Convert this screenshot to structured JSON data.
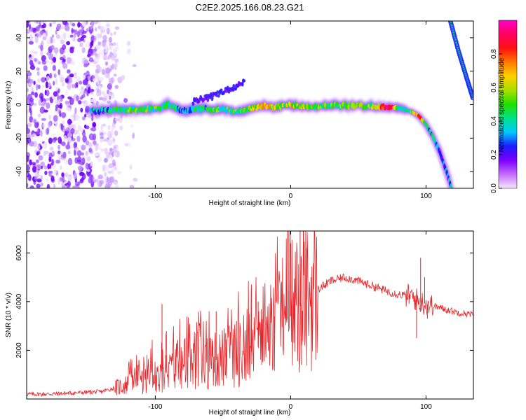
{
  "title": "C2E2.2025.166.08.23.G21",
  "chart_data": [
    {
      "type": "heatmap",
      "xlabel": "Height of straight line (km)",
      "ylabel": "Frequency (Hz)",
      "xlim": [
        -195,
        135
      ],
      "ylim": [
        -50,
        50
      ],
      "xticks": [
        -100,
        0,
        100
      ],
      "yticks": [
        -40,
        -20,
        0,
        20,
        40
      ],
      "grid": false,
      "colorbar": {
        "label": "Normalized spectral amplitude",
        "range": [
          0,
          1
        ],
        "ticks": [
          0.0,
          0.2,
          0.4,
          0.6,
          0.8
        ],
        "colors": [
          "#f4e8ff",
          "#c76cff",
          "#7a00ff",
          "#1b1bff",
          "#00c8ff",
          "#00e08a",
          "#22e000",
          "#a8e000",
          "#ffd000",
          "#ff7a00",
          "#ff1010",
          "#ff0060",
          "#ff00c8"
        ]
      },
      "noise_region": {
        "x": [
          -195,
          -128
        ],
        "y": [
          -50,
          50
        ]
      },
      "ridge": [
        {
          "x": -148,
          "f": -4,
          "a": 0.25
        },
        {
          "x": -135,
          "f": -3.5,
          "a": 0.35
        },
        {
          "x": -120,
          "f": -3,
          "a": 0.45
        },
        {
          "x": -110,
          "f": -3,
          "a": 0.5
        },
        {
          "x": -100,
          "f": -2.5,
          "a": 0.45
        },
        {
          "x": -90,
          "f": 0,
          "a": 0.4
        },
        {
          "x": -80,
          "f": -3.5,
          "a": 0.35
        },
        {
          "x": -65,
          "f": -2.5,
          "a": 0.4
        },
        {
          "x": -50,
          "f": -3,
          "a": 0.45
        },
        {
          "x": -40,
          "f": -4,
          "a": 0.45
        },
        {
          "x": -30,
          "f": -2.5,
          "a": 0.5
        },
        {
          "x": -20,
          "f": -1,
          "a": 0.7
        },
        {
          "x": -10,
          "f": -1.5,
          "a": 0.55
        },
        {
          "x": 0,
          "f": 0,
          "a": 0.6
        },
        {
          "x": 10,
          "f": -1,
          "a": 0.55
        },
        {
          "x": 20,
          "f": -1,
          "a": 0.5
        },
        {
          "x": 30,
          "f": -0.5,
          "a": 0.5
        },
        {
          "x": 40,
          "f": -0.5,
          "a": 0.5
        },
        {
          "x": 50,
          "f": -0.5,
          "a": 0.5
        },
        {
          "x": 60,
          "f": -1,
          "a": 0.55
        },
        {
          "x": 70,
          "f": -1.5,
          "a": 0.9
        },
        {
          "x": 75,
          "f": -1.5,
          "a": 0.85
        },
        {
          "x": 80,
          "f": -2,
          "a": 0.4
        },
        {
          "x": 85,
          "f": -3,
          "a": 0.4
        },
        {
          "x": 90,
          "f": -4.5,
          "a": 0.5
        },
        {
          "x": 95,
          "f": -7,
          "a": 0.8
        },
        {
          "x": 100,
          "f": -12,
          "a": 0.4
        },
        {
          "x": 105,
          "f": -19,
          "a": 0.35
        },
        {
          "x": 110,
          "f": -28,
          "a": 0.3
        },
        {
          "x": 115,
          "f": -40,
          "a": 0.3
        },
        {
          "x": 119,
          "f": -50,
          "a": 0.3
        }
      ],
      "plume": [
        {
          "x": -72,
          "f": 2
        },
        {
          "x": -62,
          "f": 4
        },
        {
          "x": -52,
          "f": 7
        },
        {
          "x": -42,
          "f": 10
        },
        {
          "x": -34,
          "f": 14
        }
      ],
      "alias_line": [
        {
          "x": 118,
          "f": 50
        },
        {
          "x": 124,
          "f": 32
        },
        {
          "x": 130,
          "f": 16
        },
        {
          "x": 135,
          "f": 3
        }
      ]
    },
    {
      "type": "line",
      "xlabel": "Height of straight line (km)",
      "ylabel": "SNR (10 * v/v)",
      "xlim": [
        -195,
        135
      ],
      "ylim": [
        0,
        6900
      ],
      "xticks": [
        -100,
        0,
        100
      ],
      "yticks": [
        2000,
        4000,
        6000
      ],
      "grid": false,
      "series": [
        {
          "color": "#e8262a",
          "points": [
            {
              "x": -195,
              "y": 200
            },
            {
              "x": -180,
              "y": 200
            },
            {
              "x": -160,
              "y": 250
            },
            {
              "x": -140,
              "y": 300
            },
            {
              "x": -130,
              "y": 450
            },
            {
              "x": -120,
              "y": 600
            },
            {
              "x": -110,
              "y": 800
            },
            {
              "x": -100,
              "y": 1000
            },
            {
              "x": -90,
              "y": 1100
            },
            {
              "x": -80,
              "y": 1300
            },
            {
              "x": -70,
              "y": 1400
            },
            {
              "x": -60,
              "y": 1500
            },
            {
              "x": -50,
              "y": 1700
            },
            {
              "x": -40,
              "y": 1800
            },
            {
              "x": -30,
              "y": 1900
            },
            {
              "x": -20,
              "y": 2300
            },
            {
              "x": -10,
              "y": 2800
            },
            {
              "x": 0,
              "y": 3400
            },
            {
              "x": 10,
              "y": 4000
            },
            {
              "x": 20,
              "y": 4500
            },
            {
              "x": 30,
              "y": 4850
            },
            {
              "x": 40,
              "y": 5000
            },
            {
              "x": 50,
              "y": 4850
            },
            {
              "x": 60,
              "y": 4650
            },
            {
              "x": 70,
              "y": 4450
            },
            {
              "x": 80,
              "y": 4300
            },
            {
              "x": 90,
              "y": 4200
            },
            {
              "x": 95,
              "y": 4000
            },
            {
              "x": 100,
              "y": 3900
            },
            {
              "x": 110,
              "y": 3750
            },
            {
              "x": 120,
              "y": 3600
            },
            {
              "x": 135,
              "y": 3450
            }
          ],
          "spikes": [
            {
              "x": -113,
              "y": 1400
            },
            {
              "x": -95,
              "y": 3900
            },
            {
              "x": -92,
              "y": 1800
            },
            {
              "x": -78,
              "y": 2500
            },
            {
              "x": -70,
              "y": 2700
            },
            {
              "x": -55,
              "y": 3600
            },
            {
              "x": -48,
              "y": 2700
            },
            {
              "x": -40,
              "y": 3200
            },
            {
              "x": -29,
              "y": 4700
            },
            {
              "x": -24,
              "y": 4000
            },
            {
              "x": -12,
              "y": 3400
            },
            {
              "x": -3,
              "y": 4500
            },
            {
              "x": 0,
              "y": 6400
            },
            {
              "x": 7,
              "y": 6900
            },
            {
              "x": 8,
              "y": 1400
            },
            {
              "x": 12,
              "y": 6200
            },
            {
              "x": 15,
              "y": 5000
            },
            {
              "x": 93,
              "y": 2500
            },
            {
              "x": 96,
              "y": 5800
            },
            {
              "x": 99,
              "y": 5000
            },
            {
              "x": 101,
              "y": 3300
            }
          ]
        }
      ]
    }
  ]
}
